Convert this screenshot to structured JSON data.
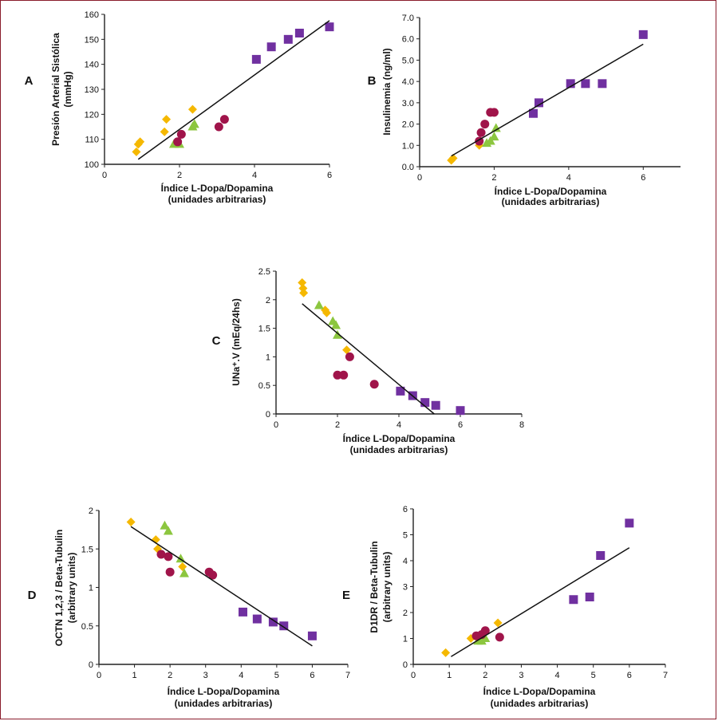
{
  "colors": {
    "frame": "#8a1c2c",
    "diamond": "#f5b800",
    "triangle": "#8cc63f",
    "circle": "#a0144a",
    "square": "#7030a0",
    "line": "#111111"
  },
  "chart_data": [
    {
      "type": "scatter",
      "panel": "A",
      "xlabel": "Índice L-Dopa/Dopamina",
      "xlabel2": "(unidades arbitrarias)",
      "ylabel": "Presión Arterial Sistólica",
      "ylabel2": "(mmHg)",
      "xlim": [
        0,
        6
      ],
      "ylim": [
        100,
        160
      ],
      "xticks": [
        "0",
        "2",
        "4",
        "6"
      ],
      "yticks": [
        "100",
        "110",
        "120",
        "130",
        "140",
        "150",
        "160"
      ],
      "groups": {
        "diamond": [
          [
            0.85,
            105
          ],
          [
            0.9,
            108
          ],
          [
            0.95,
            109
          ],
          [
            1.6,
            113
          ],
          [
            1.65,
            118
          ],
          [
            2.35,
            122
          ]
        ],
        "triangle": [
          [
            1.85,
            108
          ],
          [
            2.0,
            108
          ],
          [
            2.35,
            115
          ],
          [
            2.4,
            116
          ]
        ],
        "circle": [
          [
            1.95,
            109
          ],
          [
            2.05,
            112
          ],
          [
            3.05,
            115
          ],
          [
            3.2,
            118
          ]
        ],
        "square": [
          [
            4.05,
            142
          ],
          [
            4.45,
            147
          ],
          [
            4.9,
            150
          ],
          [
            5.2,
            152.5
          ],
          [
            6.0,
            155
          ]
        ]
      },
      "trend": [
        [
          0.9,
          102
        ],
        [
          6.0,
          157.5
        ]
      ]
    },
    {
      "type": "scatter",
      "panel": "B",
      "xlabel": "Índice L-Dopa/Dopamina",
      "xlabel2": "(unidades arbitrarias)",
      "ylabel": "Insulinemia (ng/ml)",
      "ylabel2": "",
      "xlim": [
        0,
        7
      ],
      "ylim": [
        0,
        7
      ],
      "xticks": [
        "0",
        "2",
        "4",
        "6"
      ],
      "yticks": [
        "0.0",
        "1.0",
        "2.0",
        "3.0",
        "4.0",
        "5.0",
        "6.0",
        "7.0"
      ],
      "groups": {
        "diamond": [
          [
            0.85,
            0.3
          ],
          [
            0.9,
            0.4
          ],
          [
            1.6,
            1.0
          ]
        ],
        "triangle": [
          [
            1.8,
            1.1
          ],
          [
            1.9,
            1.2
          ],
          [
            2.0,
            1.4
          ],
          [
            2.05,
            1.8
          ]
        ],
        "circle": [
          [
            1.6,
            1.2
          ],
          [
            1.65,
            1.6
          ],
          [
            1.75,
            2.0
          ],
          [
            1.9,
            2.55
          ],
          [
            2.0,
            2.55
          ]
        ],
        "square": [
          [
            3.05,
            2.5
          ],
          [
            3.2,
            3.0
          ],
          [
            4.05,
            3.9
          ],
          [
            4.45,
            3.9
          ],
          [
            4.9,
            3.9
          ],
          [
            6.0,
            6.2
          ]
        ]
      },
      "trend": [
        [
          0.85,
          0.5
        ],
        [
          6.0,
          5.75
        ]
      ]
    },
    {
      "type": "scatter",
      "panel": "C",
      "xlabel": "Índice L-Dopa/Dopamina",
      "xlabel2": "(unidades arbitrarias)",
      "ylabel": "UNa⁺.V (mEq/24hs)",
      "ylabel2": "",
      "xlim": [
        0,
        8
      ],
      "ylim": [
        0,
        2.5
      ],
      "xticks": [
        "0",
        "2",
        "4",
        "6",
        "8"
      ],
      "yticks": [
        "0",
        "0.5",
        "1",
        "1.5",
        "2",
        "2.5"
      ],
      "groups": {
        "diamond": [
          [
            0.85,
            2.3
          ],
          [
            0.88,
            2.2
          ],
          [
            0.9,
            2.12
          ],
          [
            1.6,
            1.82
          ],
          [
            1.65,
            1.77
          ],
          [
            2.3,
            1.12
          ]
        ],
        "triangle": [
          [
            1.4,
            1.9
          ],
          [
            1.85,
            1.62
          ],
          [
            1.95,
            1.55
          ],
          [
            2.0,
            1.38
          ]
        ],
        "circle": [
          [
            2.0,
            0.68
          ],
          [
            2.2,
            0.68
          ],
          [
            2.4,
            1.0
          ],
          [
            3.2,
            0.52
          ]
        ],
        "square": [
          [
            4.05,
            0.4
          ],
          [
            4.45,
            0.32
          ],
          [
            4.85,
            0.2
          ],
          [
            5.2,
            0.15
          ],
          [
            6.0,
            0.06
          ]
        ]
      },
      "trend": [
        [
          0.85,
          1.93
        ],
        [
          5.15,
          0.0
        ]
      ]
    },
    {
      "type": "scatter",
      "panel": "D",
      "xlabel": "Índice L-Dopa/Dopamina",
      "xlabel2": "(unidades arbitrarias)",
      "ylabel": "OCTN 1,2,3 / Beta-Tubulin",
      "ylabel2": "(arbitrary units)",
      "xlim": [
        0,
        7
      ],
      "ylim": [
        0,
        2
      ],
      "xticks": [
        "0",
        "1",
        "2",
        "3",
        "4",
        "5",
        "6",
        "7"
      ],
      "yticks": [
        "0",
        "0.5",
        "1",
        "1.5",
        "2"
      ],
      "groups": {
        "diamond": [
          [
            0.9,
            1.85
          ],
          [
            1.6,
            1.62
          ],
          [
            1.65,
            1.5
          ],
          [
            2.35,
            1.27
          ]
        ],
        "triangle": [
          [
            1.85,
            1.8
          ],
          [
            1.95,
            1.73
          ],
          [
            2.3,
            1.37
          ],
          [
            2.4,
            1.18
          ]
        ],
        "circle": [
          [
            1.75,
            1.43
          ],
          [
            1.95,
            1.4
          ],
          [
            2.0,
            1.2
          ],
          [
            3.1,
            1.2
          ],
          [
            3.2,
            1.16
          ]
        ],
        "square": [
          [
            4.05,
            0.68
          ],
          [
            4.45,
            0.59
          ],
          [
            4.9,
            0.55
          ],
          [
            5.2,
            0.5
          ],
          [
            6.0,
            0.37
          ]
        ]
      },
      "trend": [
        [
          0.9,
          1.79
        ],
        [
          6.0,
          0.24
        ]
      ]
    },
    {
      "type": "scatter",
      "panel": "E",
      "xlabel": "Índice L-Dopa/Dopamina",
      "xlabel2": "(unidades arbitrarias)",
      "ylabel": "D1DR / Beta-Tubulin",
      "ylabel2": "(arbitrary units)",
      "xlim": [
        0,
        7
      ],
      "ylim": [
        0,
        6
      ],
      "xticks": [
        "0",
        "1",
        "2",
        "3",
        "4",
        "5",
        "6",
        "7"
      ],
      "yticks": [
        "0",
        "1",
        "2",
        "3",
        "4",
        "5",
        "6"
      ],
      "groups": {
        "diamond": [
          [
            0.9,
            0.45
          ],
          [
            1.6,
            1.0
          ],
          [
            2.35,
            1.6
          ]
        ],
        "triangle": [
          [
            1.8,
            0.9
          ],
          [
            1.9,
            0.9
          ],
          [
            2.0,
            1.0
          ]
        ],
        "circle": [
          [
            1.75,
            1.1
          ],
          [
            1.9,
            1.15
          ],
          [
            2.0,
            1.3
          ],
          [
            2.4,
            1.05
          ]
        ],
        "square": [
          [
            4.45,
            2.5
          ],
          [
            4.9,
            2.6
          ],
          [
            5.2,
            4.2
          ],
          [
            6.0,
            5.45
          ]
        ]
      },
      "trend": [
        [
          1.05,
          0.3
        ],
        [
          6.0,
          4.5
        ]
      ]
    }
  ]
}
